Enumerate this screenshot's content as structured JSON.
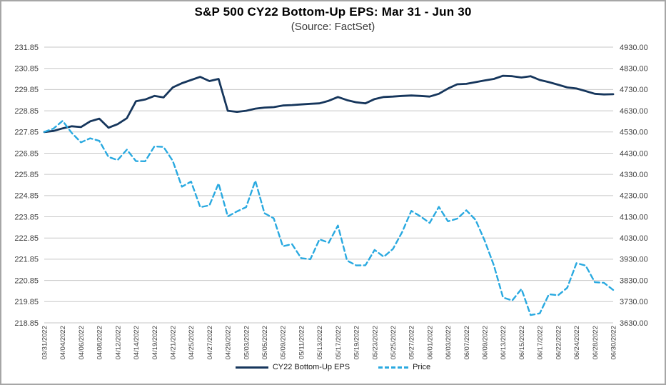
{
  "title": "S&P 500 CY22 Bottom-Up EPS: Mar 31 - Jun 30",
  "subtitle": "(Source: FactSet)",
  "legend": {
    "eps_label": "CY22 Bottom-Up EPS",
    "price_label": "Price"
  },
  "colors": {
    "eps_line": "#16365C",
    "price_line": "#29A9E0",
    "grid": "#c7c7c7",
    "axis_text": "#3f3f3f",
    "frame_border": "#a6a6a6"
  },
  "chart_data": {
    "type": "line",
    "title": "S&P 500 CY22 Bottom-Up EPS: Mar 31 - Jun 30",
    "subtitle": "(Source: FactSet)",
    "grid": "horizontal",
    "legend_position": "bottom",
    "x": [
      "03/31/2022",
      "04/01/2022",
      "04/04/2022",
      "04/05/2022",
      "04/06/2022",
      "04/07/2022",
      "04/08/2022",
      "04/11/2022",
      "04/12/2022",
      "04/13/2022",
      "04/14/2022",
      "04/18/2022",
      "04/19/2022",
      "04/20/2022",
      "04/21/2022",
      "04/22/2022",
      "04/25/2022",
      "04/26/2022",
      "04/27/2022",
      "04/28/2022",
      "04/29/2022",
      "05/02/2022",
      "05/03/2022",
      "05/04/2022",
      "05/05/2022",
      "05/06/2022",
      "05/09/2022",
      "05/10/2022",
      "05/11/2022",
      "05/12/2022",
      "05/13/2022",
      "05/16/2022",
      "05/17/2022",
      "05/18/2022",
      "05/19/2022",
      "05/20/2022",
      "05/23/2022",
      "05/24/2022",
      "05/25/2022",
      "05/26/2022",
      "05/27/2022",
      "05/31/2022",
      "06/01/2022",
      "06/02/2022",
      "06/03/2022",
      "06/06/2022",
      "06/07/2022",
      "06/08/2022",
      "06/09/2022",
      "06/10/2022",
      "06/13/2022",
      "06/14/2022",
      "06/15/2022",
      "06/16/2022",
      "06/17/2022",
      "06/21/2022",
      "06/22/2022",
      "06/23/2022",
      "06/24/2022",
      "06/27/2022",
      "06/28/2022",
      "06/29/2022",
      "06/30/2022"
    ],
    "x_tick_labels": [
      "03/31/2022",
      "04/04/2022",
      "04/06/2022",
      "04/08/2022",
      "04/12/2022",
      "04/14/2022",
      "04/19/2022",
      "04/21/2022",
      "04/25/2022",
      "04/27/2022",
      "04/29/2022",
      "05/03/2022",
      "05/05/2022",
      "05/09/2022",
      "05/11/2022",
      "05/13/2022",
      "05/17/2022",
      "05/19/2022",
      "05/23/2022",
      "05/25/2022",
      "05/27/2022",
      "06/01/2022",
      "06/03/2022",
      "06/07/2022",
      "06/09/2022",
      "06/13/2022",
      "06/15/2022",
      "06/17/2022",
      "06/22/2022",
      "06/24/2022",
      "06/28/2022",
      "06/30/2022"
    ],
    "series": [
      {
        "name": "CY22 Bottom-Up EPS",
        "axis": "left",
        "style": "solid",
        "color": "#16365C",
        "values": [
          227.85,
          227.9,
          228.02,
          228.12,
          228.08,
          228.35,
          228.48,
          228.05,
          228.22,
          228.5,
          229.3,
          229.38,
          229.55,
          229.48,
          229.95,
          230.15,
          230.3,
          230.45,
          230.25,
          230.35,
          228.85,
          228.8,
          228.85,
          228.95,
          229.0,
          229.02,
          229.1,
          229.12,
          229.15,
          229.18,
          229.2,
          229.32,
          229.5,
          229.35,
          229.25,
          229.2,
          229.4,
          229.5,
          229.52,
          229.55,
          229.57,
          229.55,
          229.52,
          229.65,
          229.9,
          230.1,
          230.12,
          230.2,
          230.28,
          230.35,
          230.5,
          230.48,
          230.42,
          230.48,
          230.3,
          230.2,
          230.08,
          229.95,
          229.9,
          229.78,
          229.65,
          229.62,
          229.63
        ]
      },
      {
        "name": "Price",
        "axis": "right",
        "style": "dashed",
        "color": "#29A9E0",
        "values": [
          4530.4,
          4545.9,
          4582.6,
          4525.1,
          4481.2,
          4500.2,
          4488.3,
          4412.5,
          4397.5,
          4446.6,
          4392.6,
          4391.7,
          4462.2,
          4459.5,
          4393.7,
          4271.8,
          4296.1,
          4175.2,
          4184.0,
          4287.5,
          4131.9,
          4155.4,
          4175.5,
          4300.2,
          4146.9,
          4123.3,
          3991.2,
          4001.1,
          3935.2,
          3930.1,
          4023.9,
          4008.0,
          4088.9,
          3923.7,
          3900.8,
          3901.4,
          3973.8,
          3941.5,
          3978.7,
          4057.8,
          4158.2,
          4132.2,
          4101.2,
          4176.8,
          4108.5,
          4121.4,
          4160.7,
          4115.8,
          4017.8,
          3900.9,
          3749.6,
          3735.5,
          3790.0,
          3666.8,
          3674.8,
          3764.8,
          3759.9,
          3795.7,
          3911.7,
          3900.1,
          3821.6,
          3818.8,
          3785.4
        ]
      }
    ],
    "left_axis": {
      "min": 218.85,
      "max": 231.85,
      "step": 1.0,
      "ticks": [
        "231.85",
        "230.85",
        "229.85",
        "228.85",
        "227.85",
        "226.85",
        "225.85",
        "224.85",
        "223.85",
        "222.85",
        "221.85",
        "220.85",
        "219.85",
        "218.85"
      ]
    },
    "right_axis": {
      "min": 3630.0,
      "max": 4930.0,
      "step": 100.0,
      "ticks": [
        "4930.00",
        "4830.00",
        "4730.00",
        "4630.00",
        "4530.00",
        "4430.00",
        "4330.00",
        "4230.00",
        "4130.00",
        "4030.00",
        "3930.00",
        "3830.00",
        "3730.00",
        "3630.00"
      ]
    }
  }
}
